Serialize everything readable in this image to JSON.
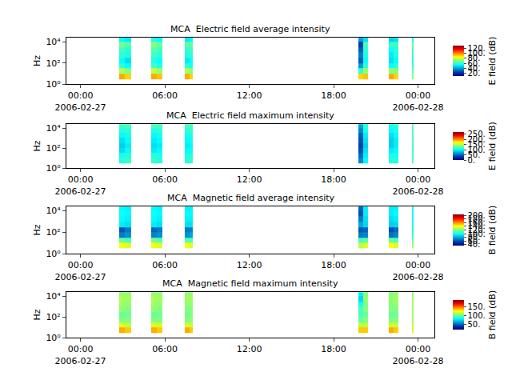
{
  "chart_data": [
    {
      "type": "heatmap",
      "title": "MCA  Electric field average intensity",
      "ylabel": "Hz",
      "colorbar_label": "E field (dB)",
      "log": "y",
      "color": "Jet",
      "x": [
        "2006-02-27 02:45",
        "2006-02-27 03:10",
        "2006-02-27 03:35",
        "2006-02-27 05:00",
        "2006-02-27 05:25",
        "2006-02-27 05:50",
        "2006-02-27 07:25",
        "2006-02-27 07:45",
        "2006-02-27 08:00",
        "2006-02-27 19:45",
        "2006-02-27 20:05",
        "2006-02-27 20:25",
        "2006-02-27 21:55",
        "2006-02-27 22:15",
        "2006-02-27 22:35",
        "2006-02-27 23:35",
        "2006-02-27 23:42"
      ],
      "y": [
        3,
        10,
        30,
        100,
        300,
        1000,
        3000,
        10000,
        25000
      ],
      "z": [
        [
          95,
          90,
          null,
          95,
          92,
          null,
          95,
          90,
          null,
          90,
          92,
          null,
          95,
          90,
          null,
          70
        ],
        [
          75,
          70,
          null,
          78,
          72,
          null,
          75,
          70,
          null,
          60,
          72,
          null,
          72,
          70,
          null,
          65
        ],
        [
          60,
          55,
          null,
          62,
          58,
          null,
          60,
          58,
          null,
          40,
          60,
          null,
          55,
          60,
          null,
          60
        ],
        [
          55,
          50,
          null,
          58,
          55,
          null,
          52,
          55,
          null,
          30,
          55,
          null,
          50,
          55,
          null,
          58
        ],
        [
          60,
          58,
          null,
          62,
          60,
          null,
          58,
          60,
          null,
          35,
          58,
          null,
          52,
          58,
          null,
          60
        ],
        [
          62,
          60,
          null,
          65,
          62,
          null,
          60,
          62,
          null,
          30,
          60,
          null,
          55,
          60,
          null,
          62
        ],
        [
          68,
          65,
          null,
          70,
          66,
          null,
          65,
          66,
          null,
          25,
          62,
          null,
          60,
          62,
          null,
          65
        ],
        [
          55,
          52,
          null,
          58,
          55,
          null,
          52,
          55,
          null,
          40,
          50,
          null,
          48,
          50,
          null,
          55
        ]
      ],
      "xlim": [
        "2006-02-26 23:00",
        "2006-02-28 01:10"
      ],
      "xticks": [
        {
          "value": "2006-02-27 00:00",
          "label": "00:00\n2006-02-27"
        },
        {
          "value": "2006-02-27 06:00",
          "label": "06:00"
        },
        {
          "value": "2006-02-27 12:00",
          "label": "12:00"
        },
        {
          "value": "2006-02-27 18:00",
          "label": "18:00"
        },
        {
          "value": "2006-02-28 00:00",
          "label": "00:00\n2006-02-28"
        }
      ],
      "ylim": [
        1,
        26000
      ],
      "yticks": [
        {
          "value": 1,
          "label": "10⁰"
        },
        {
          "value": 100,
          "label": "10²"
        },
        {
          "value": 10000,
          "label": "10⁴"
        }
      ],
      "zlim": [
        10,
        130
      ],
      "zticks": [
        {
          "value": 20,
          "label": "20."
        },
        {
          "value": 40,
          "label": "40."
        },
        {
          "value": 60,
          "label": "60."
        },
        {
          "value": 80,
          "label": "80."
        },
        {
          "value": 100,
          "label": "100."
        },
        {
          "value": 120,
          "label": "120."
        }
      ]
    },
    {
      "type": "heatmap",
      "title": "MCA  Electric field maximum intensity",
      "ylabel": "Hz",
      "colorbar_label": "E field (dB)",
      "log": "y",
      "color": "Jet",
      "x": [
        "2006-02-27 02:45",
        "2006-02-27 03:10",
        "2006-02-27 03:35",
        "2006-02-27 05:00",
        "2006-02-27 05:25",
        "2006-02-27 05:50",
        "2006-02-27 07:25",
        "2006-02-27 07:45",
        "2006-02-27 08:00",
        "2006-02-27 19:45",
        "2006-02-27 20:05",
        "2006-02-27 20:25",
        "2006-02-27 21:55",
        "2006-02-27 22:15",
        "2006-02-27 22:35",
        "2006-02-27 23:35",
        "2006-02-27 23:42"
      ],
      "y": [
        3,
        10,
        30,
        100,
        300,
        1000,
        3000,
        10000,
        25000
      ],
      "z": [
        [
          110,
          115,
          null,
          115,
          110,
          null,
          110,
          115,
          null,
          60,
          100,
          null,
          110,
          110,
          null,
          120
        ],
        [
          105,
          110,
          null,
          110,
          108,
          null,
          108,
          110,
          null,
          50,
          95,
          null,
          105,
          105,
          null,
          118
        ],
        [
          90,
          100,
          null,
          95,
          100,
          null,
          100,
          105,
          null,
          40,
          90,
          null,
          95,
          100,
          null,
          115
        ],
        [
          85,
          95,
          null,
          90,
          95,
          null,
          95,
          100,
          null,
          35,
          85,
          null,
          85,
          95,
          null,
          115
        ],
        [
          90,
          100,
          null,
          95,
          100,
          null,
          100,
          105,
          null,
          40,
          90,
          null,
          85,
          95,
          null,
          118
        ],
        [
          100,
          105,
          null,
          100,
          105,
          null,
          105,
          108,
          null,
          45,
          95,
          null,
          90,
          100,
          null,
          120
        ],
        [
          110,
          112,
          null,
          110,
          112,
          null,
          112,
          115,
          null,
          60,
          105,
          null,
          100,
          108,
          null,
          122
        ],
        [
          115,
          118,
          null,
          118,
          118,
          null,
          118,
          118,
          null,
          70,
          110,
          null,
          105,
          110,
          null,
          122
        ]
      ],
      "xlim": [
        "2006-02-26 23:00",
        "2006-02-28 01:10"
      ],
      "xticks": [
        {
          "value": "2006-02-27 00:00",
          "label": "00:00\n2006-02-27"
        },
        {
          "value": "2006-02-27 06:00",
          "label": "06:00"
        },
        {
          "value": "2006-02-27 12:00",
          "label": "12:00"
        },
        {
          "value": "2006-02-27 18:00",
          "label": "18:00"
        },
        {
          "value": "2006-02-28 00:00",
          "label": "00:00\n2006-02-28"
        }
      ],
      "ylim": [
        1,
        26000
      ],
      "yticks": [
        {
          "value": 1,
          "label": "10⁰"
        },
        {
          "value": 100,
          "label": "10²"
        },
        {
          "value": 10000,
          "label": "10⁴"
        }
      ],
      "zlim": [
        0,
        270
      ],
      "zticks": [
        {
          "value": 0,
          "label": "0."
        },
        {
          "value": 50,
          "label": "50."
        },
        {
          "value": 100,
          "label": "100."
        },
        {
          "value": 150,
          "label": "150."
        },
        {
          "value": 200,
          "label": "200."
        },
        {
          "value": 250,
          "label": "250."
        }
      ]
    },
    {
      "type": "heatmap",
      "title": "MCA  Magnetic field average intensity",
      "ylabel": "Hz",
      "colorbar_label": "B field (dB)",
      "log": "y",
      "color": "Jet",
      "x": [
        "2006-02-27 02:45",
        "2006-02-27 03:10",
        "2006-02-27 03:35",
        "2006-02-27 05:00",
        "2006-02-27 05:25",
        "2006-02-27 05:50",
        "2006-02-27 07:25",
        "2006-02-27 07:45",
        "2006-02-27 08:00",
        "2006-02-27 19:45",
        "2006-02-27 20:05",
        "2006-02-27 20:25",
        "2006-02-27 21:55",
        "2006-02-27 22:15",
        "2006-02-27 22:35",
        "2006-02-27 23:35",
        "2006-02-27 23:42"
      ],
      "y": [
        3,
        10,
        30,
        100,
        300,
        1000,
        3000,
        10000,
        25000
      ],
      "z": [
        [
          140,
          135,
          null,
          140,
          135,
          null,
          140,
          135,
          null,
          130,
          135,
          null,
          140,
          135,
          null,
          125
        ],
        [
          115,
          110,
          null,
          118,
          112,
          null,
          112,
          110,
          null,
          110,
          112,
          null,
          115,
          110,
          null,
          115
        ],
        [
          70,
          75,
          null,
          72,
          75,
          null,
          75,
          78,
          null,
          70,
          72,
          null,
          68,
          72,
          null,
          105
        ],
        [
          62,
          70,
          null,
          65,
          70,
          null,
          70,
          72,
          null,
          62,
          65,
          null,
          60,
          65,
          null,
          100
        ],
        [
          95,
          92,
          null,
          95,
          92,
          null,
          92,
          92,
          null,
          80,
          90,
          null,
          88,
          90,
          null,
          100
        ],
        [
          98,
          96,
          null,
          98,
          96,
          null,
          96,
          96,
          null,
          70,
          92,
          null,
          92,
          95,
          null,
          100
        ],
        [
          100,
          98,
          null,
          100,
          98,
          null,
          98,
          98,
          null,
          60,
          95,
          null,
          95,
          98,
          null,
          100
        ],
        [
          98,
          96,
          null,
          98,
          96,
          null,
          96,
          96,
          null,
          65,
          95,
          null,
          95,
          96,
          null,
          100
        ]
      ],
      "xlim": [
        "2006-02-26 23:00",
        "2006-02-28 01:10"
      ],
      "xticks": [
        {
          "value": "2006-02-27 00:00",
          "label": "00:00\n2006-02-27"
        },
        {
          "value": "2006-02-27 06:00",
          "label": "06:00"
        },
        {
          "value": "2006-02-27 12:00",
          "label": "12:00"
        },
        {
          "value": "2006-02-27 18:00",
          "label": "18:00"
        },
        {
          "value": "2006-02-28 00:00",
          "label": "00:00\n2006-02-28"
        }
      ],
      "ylim": [
        1,
        26000
      ],
      "yticks": [
        {
          "value": 1,
          "label": "10⁰"
        },
        {
          "value": 100,
          "label": "10²"
        },
        {
          "value": 10000,
          "label": "10⁴"
        }
      ],
      "zlim": [
        35,
        205
      ],
      "zticks": [
        {
          "value": 40,
          "label": "40."
        },
        {
          "value": 60,
          "label": "60."
        },
        {
          "value": 80,
          "label": "80."
        },
        {
          "value": 100,
          "label": "100."
        },
        {
          "value": 120,
          "label": "120."
        },
        {
          "value": 140,
          "label": "140."
        },
        {
          "value": 160,
          "label": "160."
        },
        {
          "value": 180,
          "label": "180."
        },
        {
          "value": 200,
          "label": "200."
        }
      ]
    },
    {
      "type": "heatmap",
      "title": "MCA  Magnetic field maximum intensity",
      "ylabel": "Hz",
      "colorbar_label": "B field (dB)",
      "log": "y",
      "color": "Jet",
      "x": [
        "2006-02-27 02:45",
        "2006-02-27 03:10",
        "2006-02-27 03:35",
        "2006-02-27 05:00",
        "2006-02-27 05:25",
        "2006-02-27 05:50",
        "2006-02-27 07:25",
        "2006-02-27 07:45",
        "2006-02-27 08:00",
        "2006-02-27 19:45",
        "2006-02-27 20:05",
        "2006-02-27 20:25",
        "2006-02-27 21:55",
        "2006-02-27 22:15",
        "2006-02-27 22:35",
        "2006-02-27 23:35",
        "2006-02-27 23:42"
      ],
      "y": [
        3,
        10,
        30,
        100,
        300,
        1000,
        3000,
        10000,
        25000
      ],
      "z": [
        [
          140,
          135,
          null,
          140,
          135,
          null,
          140,
          135,
          null,
          135,
          135,
          null,
          140,
          135,
          null,
          120
        ],
        [
          120,
          115,
          null,
          120,
          118,
          null,
          118,
          115,
          null,
          115,
          115,
          null,
          120,
          115,
          null,
          115
        ],
        [
          105,
          105,
          null,
          105,
          105,
          null,
          105,
          108,
          null,
          100,
          105,
          null,
          105,
          105,
          null,
          110
        ],
        [
          100,
          102,
          null,
          100,
          102,
          null,
          102,
          105,
          null,
          95,
          100,
          null,
          100,
          102,
          null,
          108
        ],
        [
          108,
          105,
          null,
          108,
          105,
          null,
          105,
          105,
          null,
          95,
          105,
          null,
          105,
          105,
          null,
          110
        ],
        [
          110,
          108,
          null,
          110,
          108,
          null,
          108,
          108,
          null,
          85,
          105,
          null,
          105,
          108,
          null,
          110
        ],
        [
          112,
          110,
          null,
          112,
          110,
          null,
          110,
          110,
          null,
          75,
          108,
          null,
          108,
          110,
          null,
          110
        ],
        [
          108,
          108,
          null,
          108,
          108,
          null,
          108,
          108,
          null,
          80,
          105,
          null,
          105,
          108,
          null,
          108
        ]
      ],
      "xlim": [
        "2006-02-26 23:00",
        "2006-02-28 01:10"
      ],
      "xticks": [
        {
          "value": "2006-02-27 00:00",
          "label": "00:00\n2006-02-27"
        },
        {
          "value": "2006-02-27 06:00",
          "label": "06:00"
        },
        {
          "value": "2006-02-27 12:00",
          "label": "12:00"
        },
        {
          "value": "2006-02-27 18:00",
          "label": "18:00"
        },
        {
          "value": "2006-02-28 00:00",
          "label": "00:00\n2006-02-28"
        }
      ],
      "ylim": [
        1,
        26000
      ],
      "yticks": [
        {
          "value": 1,
          "label": "10⁰"
        },
        {
          "value": 100,
          "label": "10²"
        },
        {
          "value": 10000,
          "label": "10⁴"
        }
      ],
      "zlim": [
        20,
        190
      ],
      "zticks": [
        {
          "value": 50,
          "label": "50."
        },
        {
          "value": 100,
          "label": "100."
        },
        {
          "value": 150,
          "label": "150."
        }
      ]
    }
  ]
}
